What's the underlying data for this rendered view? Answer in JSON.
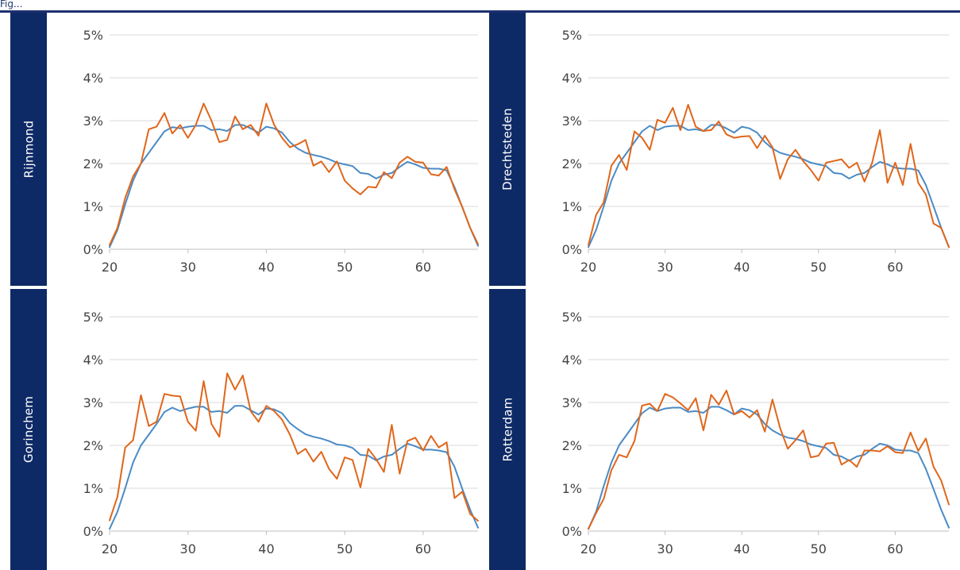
{
  "caption": "Fig...",
  "colors": {
    "band": "#0e2a66",
    "series_a": "#4a8bc6",
    "series_b": "#e0661b",
    "grid": "#d9d9d9"
  },
  "chart_data": [
    {
      "type": "line",
      "panel_label": "Rijnmond",
      "xlim": [
        20,
        67
      ],
      "ylim": [
        0,
        5
      ],
      "xticks": [
        20,
        30,
        40,
        50,
        60
      ],
      "yticks": [
        0,
        1,
        2,
        3,
        4,
        5
      ],
      "xtick_labels": [
        "20",
        "30",
        "40",
        "50",
        "60"
      ],
      "ytick_labels": [
        "0%",
        "1%",
        "2%",
        "3%",
        "4%",
        "5%"
      ],
      "grid": true,
      "x": [
        20,
        21,
        22,
        23,
        24,
        25,
        26,
        27,
        28,
        29,
        30,
        31,
        32,
        33,
        34,
        35,
        36,
        37,
        38,
        39,
        40,
        41,
        42,
        43,
        44,
        45,
        46,
        47,
        48,
        49,
        50,
        51,
        52,
        53,
        54,
        55,
        56,
        57,
        58,
        59,
        60,
        61,
        62,
        63,
        64,
        65,
        66,
        67
      ],
      "series": [
        {
          "color": "#4a8bc6",
          "values": [
            0.05,
            0.45,
            1.05,
            1.6,
            2.0,
            2.25,
            2.5,
            2.75,
            2.85,
            2.82,
            2.86,
            2.88,
            2.88,
            2.78,
            2.8,
            2.76,
            2.9,
            2.9,
            2.82,
            2.72,
            2.86,
            2.82,
            2.72,
            2.5,
            2.35,
            2.25,
            2.2,
            2.16,
            2.1,
            2.02,
            1.98,
            1.94,
            1.78,
            1.76,
            1.65,
            1.74,
            1.78,
            1.92,
            2.04,
            1.98,
            1.9,
            1.88,
            1.88,
            1.84,
            1.45,
            0.98,
            0.5,
            0.08
          ]
        },
        {
          "color": "#e0661b",
          "values": [
            0.1,
            0.5,
            1.2,
            1.7,
            2.0,
            2.8,
            2.86,
            3.18,
            2.7,
            2.9,
            2.6,
            2.9,
            3.4,
            3.0,
            2.5,
            2.55,
            3.1,
            2.8,
            2.9,
            2.65,
            3.4,
            2.9,
            2.6,
            2.38,
            2.45,
            2.55,
            1.95,
            2.05,
            1.8,
            2.05,
            1.6,
            1.42,
            1.28,
            1.46,
            1.44,
            1.8,
            1.66,
            2.02,
            2.16,
            2.04,
            2.02,
            1.75,
            1.72,
            1.92,
            1.4,
            0.98,
            0.5,
            0.12
          ]
        }
      ]
    },
    {
      "type": "line",
      "panel_label": "Drechtsteden",
      "xlim": [
        20,
        67
      ],
      "ylim": [
        0,
        5
      ],
      "xticks": [
        20,
        30,
        40,
        50,
        60
      ],
      "yticks": [
        0,
        1,
        2,
        3,
        4,
        5
      ],
      "xtick_labels": [
        "20",
        "30",
        "40",
        "50",
        "60"
      ],
      "ytick_labels": [
        "0%",
        "1%",
        "2%",
        "3%",
        "4%",
        "5%"
      ],
      "grid": true,
      "x": [
        20,
        21,
        22,
        23,
        24,
        25,
        26,
        27,
        28,
        29,
        30,
        31,
        32,
        33,
        34,
        35,
        36,
        37,
        38,
        39,
        40,
        41,
        42,
        43,
        44,
        45,
        46,
        47,
        48,
        49,
        50,
        51,
        52,
        53,
        54,
        55,
        56,
        57,
        58,
        59,
        60,
        61,
        62,
        63,
        64,
        65,
        66,
        67
      ],
      "series": [
        {
          "color": "#4a8bc6",
          "values": [
            0.05,
            0.45,
            1.0,
            1.6,
            2.0,
            2.25,
            2.5,
            2.75,
            2.88,
            2.78,
            2.86,
            2.88,
            2.88,
            2.78,
            2.8,
            2.76,
            2.9,
            2.9,
            2.82,
            2.72,
            2.86,
            2.82,
            2.72,
            2.5,
            2.35,
            2.25,
            2.2,
            2.16,
            2.1,
            2.02,
            1.98,
            1.94,
            1.78,
            1.76,
            1.65,
            1.74,
            1.78,
            1.92,
            2.04,
            1.98,
            1.9,
            1.88,
            1.88,
            1.84,
            1.5,
            1.0,
            0.5,
            0.05
          ]
        },
        {
          "color": "#e0661b",
          "values": [
            0.1,
            0.8,
            1.1,
            1.95,
            2.2,
            1.85,
            2.75,
            2.6,
            2.32,
            3.02,
            2.95,
            3.3,
            2.78,
            3.37,
            2.86,
            2.76,
            2.78,
            2.98,
            2.68,
            2.6,
            2.63,
            2.64,
            2.36,
            2.65,
            2.38,
            1.64,
            2.1,
            2.32,
            2.06,
            1.85,
            1.6,
            2.02,
            2.06,
            2.1,
            1.9,
            2.02,
            1.58,
            2.02,
            2.78,
            1.55,
            2.02,
            1.5,
            2.46,
            1.55,
            1.28,
            0.6,
            0.5,
            0.05
          ]
        }
      ]
    },
    {
      "type": "line",
      "panel_label": "Gorinchem",
      "xlim": [
        20,
        67
      ],
      "ylim": [
        0,
        5
      ],
      "xticks": [
        20,
        30,
        40,
        50,
        60
      ],
      "yticks": [
        0,
        1,
        2,
        3,
        4,
        5
      ],
      "xtick_labels": [
        "20",
        "30",
        "40",
        "50",
        "60"
      ],
      "ytick_labels": [
        "0%",
        "1%",
        "2%",
        "3%",
        "4%",
        "5%"
      ],
      "grid": true,
      "x": [
        20,
        21,
        22,
        23,
        24,
        25,
        26,
        27,
        28,
        29,
        30,
        31,
        32,
        33,
        34,
        35,
        36,
        37,
        38,
        39,
        40,
        41,
        42,
        43,
        44,
        45,
        46,
        47,
        48,
        49,
        50,
        51,
        52,
        53,
        54,
        55,
        56,
        57,
        58,
        59,
        60,
        61,
        62,
        63,
        64,
        65,
        66,
        67
      ],
      "series": [
        {
          "color": "#4a8bc6",
          "values": [
            0.05,
            0.45,
            1.0,
            1.6,
            2.0,
            2.25,
            2.5,
            2.78,
            2.88,
            2.8,
            2.86,
            2.9,
            2.9,
            2.78,
            2.8,
            2.76,
            2.92,
            2.92,
            2.82,
            2.72,
            2.86,
            2.84,
            2.75,
            2.52,
            2.38,
            2.26,
            2.2,
            2.16,
            2.1,
            2.02,
            2.0,
            1.94,
            1.78,
            1.76,
            1.65,
            1.74,
            1.78,
            1.92,
            2.04,
            1.98,
            1.9,
            1.9,
            1.88,
            1.84,
            1.5,
            0.98,
            0.5,
            0.08
          ]
        },
        {
          "color": "#e0661b",
          "values": [
            0.25,
            0.8,
            1.95,
            2.12,
            3.17,
            2.45,
            2.55,
            3.2,
            3.16,
            3.14,
            2.55,
            2.34,
            3.5,
            2.5,
            2.2,
            3.68,
            3.3,
            3.63,
            2.8,
            2.55,
            2.92,
            2.8,
            2.6,
            2.25,
            1.8,
            1.92,
            1.62,
            1.85,
            1.45,
            1.22,
            1.72,
            1.66,
            1.02,
            1.92,
            1.68,
            1.38,
            2.48,
            1.34,
            2.1,
            2.18,
            1.88,
            2.22,
            1.95,
            2.07,
            0.77,
            0.92,
            0.4,
            0.24
          ]
        }
      ]
    },
    {
      "type": "line",
      "panel_label": "Rotterdam",
      "xlim": [
        20,
        67
      ],
      "ylim": [
        0,
        5
      ],
      "xticks": [
        20,
        30,
        40,
        50,
        60
      ],
      "yticks": [
        0,
        1,
        2,
        3,
        4,
        5
      ],
      "xtick_labels": [
        "20",
        "30",
        "40",
        "50",
        "60"
      ],
      "ytick_labels": [
        "0%",
        "1%",
        "2%",
        "3%",
        "4%",
        "5%"
      ],
      "grid": true,
      "x": [
        20,
        21,
        22,
        23,
        24,
        25,
        26,
        27,
        28,
        29,
        30,
        31,
        32,
        33,
        34,
        35,
        36,
        37,
        38,
        39,
        40,
        41,
        42,
        43,
        44,
        45,
        46,
        47,
        48,
        49,
        50,
        51,
        52,
        53,
        54,
        55,
        56,
        57,
        58,
        59,
        60,
        61,
        62,
        63,
        64,
        65,
        66,
        67
      ],
      "series": [
        {
          "color": "#4a8bc6",
          "values": [
            0.05,
            0.45,
            1.05,
            1.6,
            2.0,
            2.25,
            2.5,
            2.75,
            2.88,
            2.8,
            2.86,
            2.88,
            2.88,
            2.78,
            2.8,
            2.76,
            2.9,
            2.9,
            2.82,
            2.72,
            2.86,
            2.82,
            2.72,
            2.5,
            2.35,
            2.25,
            2.18,
            2.15,
            2.1,
            2.02,
            1.98,
            1.94,
            1.78,
            1.74,
            1.64,
            1.74,
            1.78,
            1.92,
            2.04,
            2.0,
            1.9,
            1.88,
            1.88,
            1.82,
            1.45,
            0.98,
            0.5,
            0.08
          ]
        },
        {
          "color": "#e0661b",
          "values": [
            0.05,
            0.42,
            0.75,
            1.42,
            1.78,
            1.72,
            2.1,
            2.93,
            2.97,
            2.8,
            3.2,
            3.12,
            2.98,
            2.82,
            3.1,
            2.35,
            3.18,
            2.95,
            3.28,
            2.72,
            2.8,
            2.65,
            2.82,
            2.32,
            3.07,
            2.4,
            1.92,
            2.12,
            2.35,
            1.72,
            1.76,
            2.04,
            2.06,
            1.55,
            1.66,
            1.5,
            1.88,
            1.88,
            1.86,
            1.98,
            1.84,
            1.82,
            2.3,
            1.87,
            2.16,
            1.5,
            1.18,
            0.62
          ]
        }
      ]
    }
  ]
}
